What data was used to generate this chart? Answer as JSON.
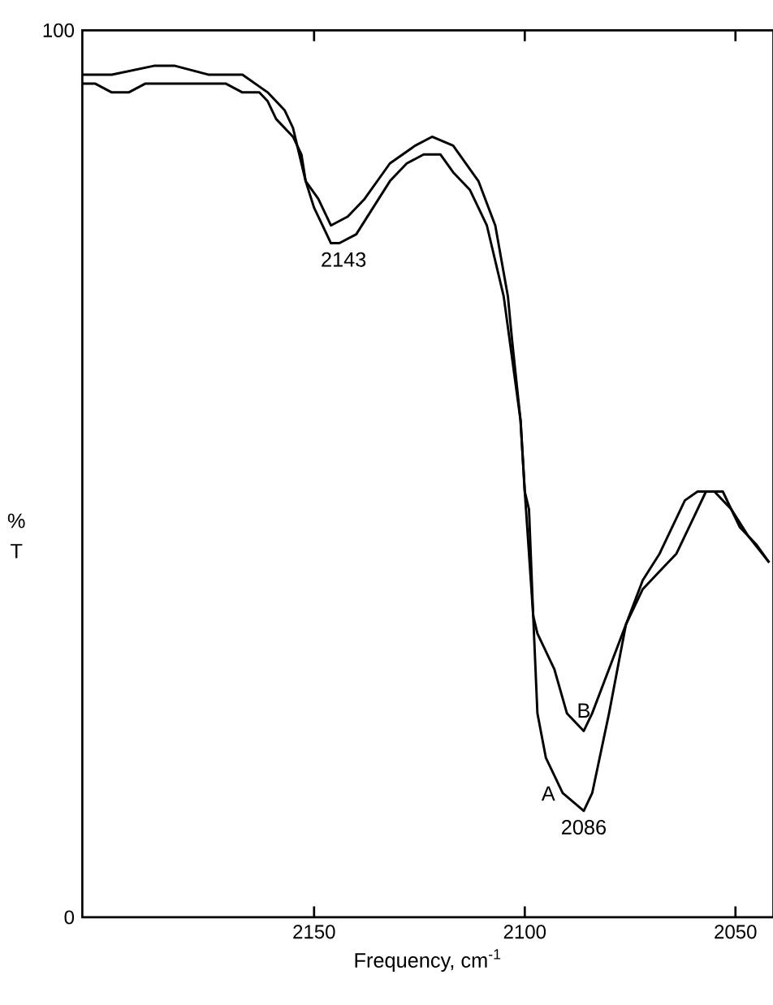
{
  "chart_data": {
    "type": "line",
    "xlabel": "Frequency, cm$^{-1}$",
    "ylabel": "% T",
    "xlim": [
      2205,
      2041
    ],
    "ylim": [
      0,
      100
    ],
    "xticks": [
      2150,
      2100,
      2050
    ],
    "yticks": [
      0,
      100
    ],
    "annotations": [
      {
        "text": "2143",
        "x": 2143,
        "y": 76
      },
      {
        "text": "2086",
        "x": 2086,
        "y": 12
      }
    ],
    "series": [
      {
        "name": "A",
        "color": "#000000",
        "x": [
          2205,
          2202,
          2198,
          2194,
          2190,
          2186,
          2179,
          2171,
          2167,
          2163,
          2161,
          2159,
          2155,
          2153,
          2152,
          2150,
          2148,
          2146,
          2144,
          2140,
          2136,
          2132,
          2128,
          2124,
          2120,
          2117,
          2113,
          2109,
          2105,
          2101,
          2100,
          2099,
          2098,
          2097,
          2095,
          2091,
          2086,
          2084,
          2080,
          2076,
          2072,
          2068,
          2064,
          2060,
          2057,
          2053,
          2049,
          2045,
          2042
        ],
        "values": [
          94,
          94,
          93,
          93,
          94,
          94,
          94,
          94,
          93,
          93,
          92,
          90,
          88,
          86,
          83,
          80,
          78,
          76,
          76,
          77,
          80,
          83,
          85,
          86,
          86,
          84,
          82,
          78,
          70,
          56,
          48,
          46,
          34,
          23,
          18,
          14,
          12,
          14,
          23,
          33,
          37,
          39,
          41,
          45,
          48,
          48,
          44,
          42,
          40
        ]
      },
      {
        "name": "B",
        "color": "#000000",
        "x": [
          2205,
          2198,
          2188,
          2183,
          2175,
          2167,
          2161,
          2157,
          2155,
          2152,
          2149,
          2146,
          2142,
          2138,
          2132,
          2126,
          2122,
          2117,
          2111,
          2107,
          2104,
          2103,
          2101,
          2100,
          2098,
          2097,
          2093,
          2090,
          2086,
          2084,
          2080,
          2076,
          2072,
          2068,
          2062,
          2059,
          2055,
          2051,
          2047,
          2042
        ],
        "values": [
          95,
          95,
          96,
          96,
          95,
          95,
          93,
          91,
          89,
          83,
          81,
          78,
          79,
          81,
          85,
          87,
          88,
          87,
          83,
          78,
          70,
          65,
          56,
          48,
          34,
          32,
          28,
          23,
          21,
          23,
          28,
          33,
          38,
          41,
          47,
          48,
          48,
          46,
          43,
          40
        ]
      }
    ]
  }
}
